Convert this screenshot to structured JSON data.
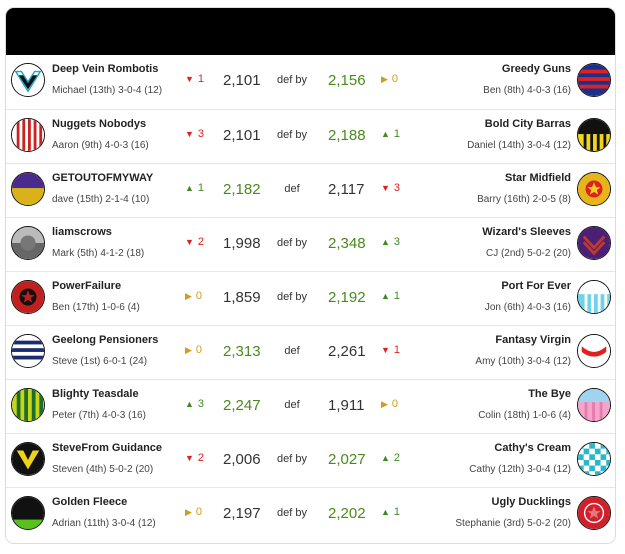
{
  "matchups": [
    {
      "left": {
        "team": "Deep Vein Rombotis",
        "owner": "Michael (13th) 3-0-4 (12)",
        "score": "2,101",
        "change": {
          "dir": "down",
          "value": "1"
        }
      },
      "result": "def by",
      "right": {
        "team": "Greedy Guns",
        "owner": "Ben (8th) 4-0-3 (16)",
        "score": "2,156",
        "change": {
          "dir": "flat",
          "value": "0"
        }
      },
      "winner": "right"
    },
    {
      "left": {
        "team": "Nuggets Nobodys",
        "owner": "Aaron (9th) 4-0-3 (16)",
        "score": "2,101",
        "change": {
          "dir": "down",
          "value": "3"
        }
      },
      "result": "def by",
      "right": {
        "team": "Bold City Barras",
        "owner": "Daniel (14th) 3-0-4 (12)",
        "score": "2,188",
        "change": {
          "dir": "up",
          "value": "1"
        }
      },
      "winner": "right"
    },
    {
      "left": {
        "team": "GETOUTOFMYWAY",
        "owner": "dave (15th) 2-1-4 (10)",
        "score": "2,182",
        "change": {
          "dir": "up",
          "value": "1"
        }
      },
      "result": "def",
      "right": {
        "team": "Star Midfield",
        "owner": "Barry (16th) 2-0-5 (8)",
        "score": "2,117",
        "change": {
          "dir": "down",
          "value": "3"
        }
      },
      "winner": "left"
    },
    {
      "left": {
        "team": "liamscrows",
        "owner": "Mark (5th) 4-1-2 (18)",
        "score": "1,998",
        "change": {
          "dir": "down",
          "value": "2"
        }
      },
      "result": "def by",
      "right": {
        "team": "Wizard's Sleeves",
        "owner": "CJ (2nd) 5-0-2 (20)",
        "score": "2,348",
        "change": {
          "dir": "up",
          "value": "3"
        }
      },
      "winner": "right"
    },
    {
      "left": {
        "team": "PowerFailure",
        "owner": "Ben (17th) 1-0-6 (4)",
        "score": "1,859",
        "change": {
          "dir": "flat",
          "value": "0"
        }
      },
      "result": "def by",
      "right": {
        "team": "Port For Ever",
        "owner": "Jon (6th) 4-0-3 (16)",
        "score": "2,192",
        "change": {
          "dir": "up",
          "value": "1"
        }
      },
      "winner": "right"
    },
    {
      "left": {
        "team": "Geelong Pensioners",
        "owner": "Steve (1st) 6-0-1 (24)",
        "score": "2,313",
        "change": {
          "dir": "flat",
          "value": "0"
        }
      },
      "result": "def",
      "right": {
        "team": "Fantasy Virgin",
        "owner": "Amy (10th) 3-0-4 (12)",
        "score": "2,261",
        "change": {
          "dir": "down",
          "value": "1"
        }
      },
      "winner": "left"
    },
    {
      "left": {
        "team": "Blighty Teasdale",
        "owner": "Peter (7th) 4-0-3 (16)",
        "score": "2,247",
        "change": {
          "dir": "up",
          "value": "3"
        }
      },
      "result": "def",
      "right": {
        "team": "The Bye",
        "owner": "Colin (18th) 1-0-6 (4)",
        "score": "1,911",
        "change": {
          "dir": "flat",
          "value": "0"
        }
      },
      "winner": "left"
    },
    {
      "left": {
        "team": "SteveFrom Guidance",
        "owner": "Steven (4th) 5-0-2 (20)",
        "score": "2,006",
        "change": {
          "dir": "down",
          "value": "2"
        }
      },
      "result": "def by",
      "right": {
        "team": "Cathy's Cream",
        "owner": "Cathy (12th) 3-0-4 (12)",
        "score": "2,027",
        "change": {
          "dir": "up",
          "value": "2"
        }
      },
      "winner": "right"
    },
    {
      "left": {
        "team": "Golden Fleece",
        "owner": "Adrian (11th) 3-0-4 (12)",
        "score": "2,197",
        "change": {
          "dir": "flat",
          "value": "0"
        }
      },
      "result": "def by",
      "right": {
        "team": "Ugly Ducklings",
        "owner": "Stephanie (3rd) 5-0-2 (20)",
        "score": "2,202",
        "change": {
          "dir": "up",
          "value": "1"
        }
      },
      "winner": "right"
    }
  ],
  "arrows": {
    "up": "▲",
    "down": "▼",
    "flat": "▶"
  },
  "colors": {
    "win": "#4a8a1c",
    "up": "#3d8b21",
    "down": "#dd2222",
    "flat": "#d49a1b"
  }
}
